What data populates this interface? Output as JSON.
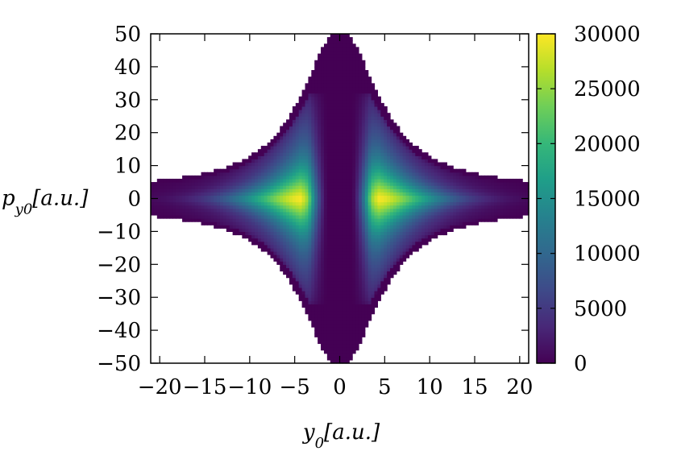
{
  "chart_data": {
    "type": "heatmap",
    "title": "",
    "xlabel": "y0[a.u.]",
    "ylabel": "py0[a.u.]",
    "xlabel_parts": {
      "base": "y",
      "sub": "0",
      "unit": "[a.u.]"
    },
    "ylabel_parts": {
      "base": "p",
      "sub": "y0",
      "unit": "[a.u.]"
    },
    "xlim": [
      -21,
      21
    ],
    "ylim": [
      -50,
      50
    ],
    "x_ticks": [
      -20,
      -15,
      -10,
      -5,
      0,
      5,
      10,
      15,
      20
    ],
    "x_tick_labels": [
      "−20",
      "−15",
      "−10",
      "−5",
      "0",
      "5",
      "10",
      "15",
      "20"
    ],
    "y_ticks": [
      -50,
      -40,
      -30,
      -20,
      -10,
      0,
      10,
      20,
      30,
      40,
      50
    ],
    "y_tick_labels": [
      "−50",
      "−40",
      "−30",
      "−20",
      "−10",
      "0",
      "10",
      "20",
      "30",
      "40",
      "50"
    ],
    "colorbar": {
      "range": [
        0,
        30000
      ],
      "ticks": [
        0,
        5000,
        10000,
        15000,
        20000,
        25000,
        30000
      ],
      "tick_labels": [
        "0",
        "5000",
        "10000",
        "15000",
        "20000",
        "25000",
        "30000"
      ],
      "colormap": "viridis",
      "stops": [
        "#440154",
        "#482878",
        "#3e4a89",
        "#31688e",
        "#26828e",
        "#1f9e89",
        "#35b779",
        "#6ece58",
        "#b5de2b",
        "#fde725"
      ]
    },
    "density": {
      "envelope_peak_py": 49,
      "envelope_width_y": 5.2,
      "inner_band_halfwidth_y": 1.3,
      "peak_y": 4.3,
      "peak_value": 30000,
      "lobe_py_extent": 32
    },
    "grid": false,
    "legend": "none"
  }
}
